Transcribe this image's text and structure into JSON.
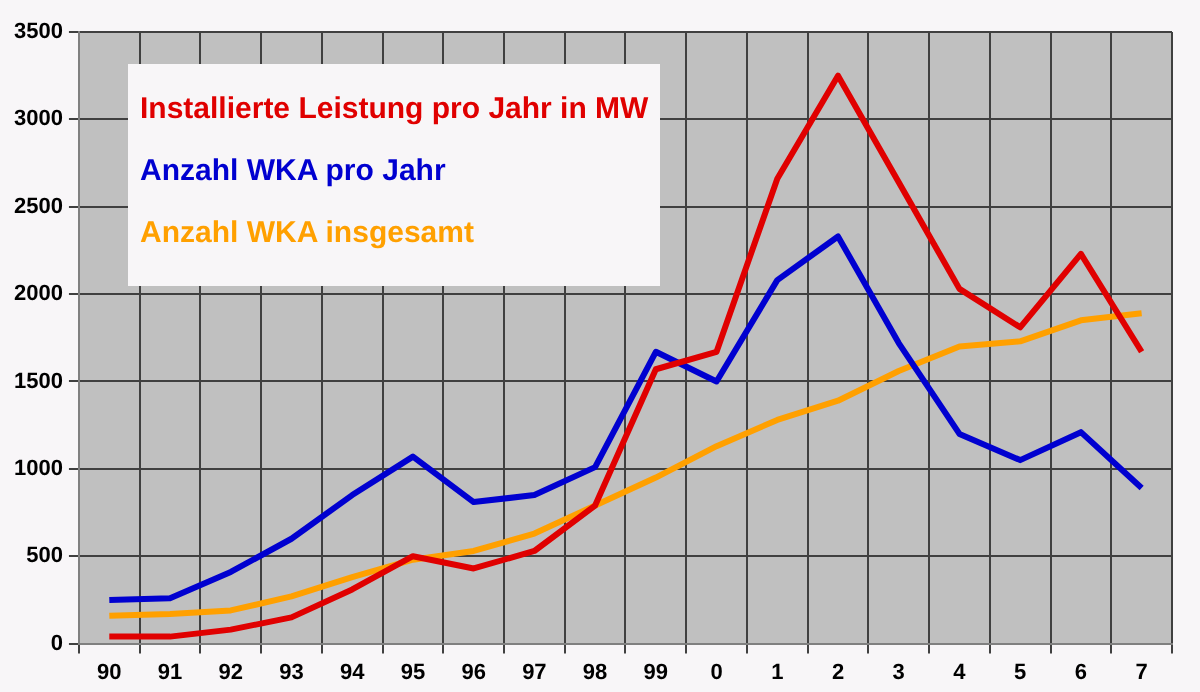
{
  "chart_data": {
    "type": "line",
    "categories": [
      "90",
      "91",
      "92",
      "93",
      "94",
      "95",
      "96",
      "97",
      "98",
      "99",
      "0",
      "1",
      "2",
      "3",
      "4",
      "5",
      "6",
      "7"
    ],
    "series": [
      {
        "name": "Installierte Leistung pro Jahr in MW",
        "color": "#e00000",
        "values": [
          40,
          40,
          80,
          150,
          310,
          500,
          430,
          530,
          790,
          1570,
          1670,
          2660,
          3250,
          2640,
          2030,
          1810,
          2230,
          1670
        ]
      },
      {
        "name": "Anzahl WKA pro Jahr",
        "color": "#0000d0",
        "values": [
          250,
          260,
          410,
          600,
          850,
          1070,
          810,
          850,
          1010,
          1670,
          1500,
          2080,
          2330,
          1720,
          1200,
          1050,
          1210,
          890
        ]
      },
      {
        "name": "Anzahl WKA insgesamt",
        "color": "#ffa000",
        "values": [
          160,
          170,
          190,
          270,
          380,
          480,
          530,
          630,
          790,
          950,
          1130,
          1280,
          1390,
          1560,
          1700,
          1730,
          1850,
          1890
        ]
      }
    ],
    "ylim": [
      0,
      3500
    ],
    "yticks": [
      0,
      500,
      1000,
      1500,
      2000,
      2500,
      3000,
      3500
    ],
    "grid": true,
    "legend": "top left",
    "marker": "none",
    "line_style": "solid"
  }
}
